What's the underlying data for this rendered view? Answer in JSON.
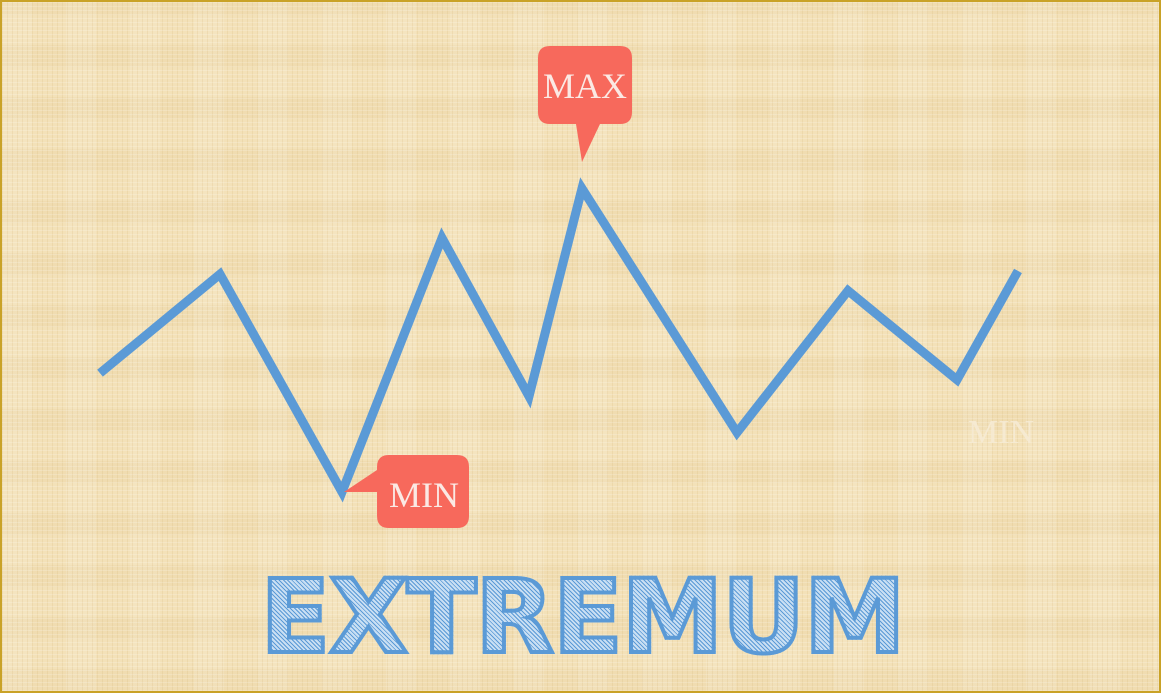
{
  "title": "EXTREMUM",
  "labels": {
    "max": "MAX",
    "min": "MIN",
    "min_faint": "MIN"
  },
  "colors": {
    "line": "#5b9ad6",
    "callout": "#f7695c",
    "background": "#f3e1b8",
    "border": "#c9a227"
  },
  "chart_data": {
    "type": "line",
    "series": [
      {
        "values": [
          0.36,
          0.66,
          0.0,
          0.77,
          0.29,
          0.92,
          0.18,
          0.61,
          0.34,
          0.67
        ]
      }
    ],
    "max_index": 5,
    "min_index": 2
  }
}
